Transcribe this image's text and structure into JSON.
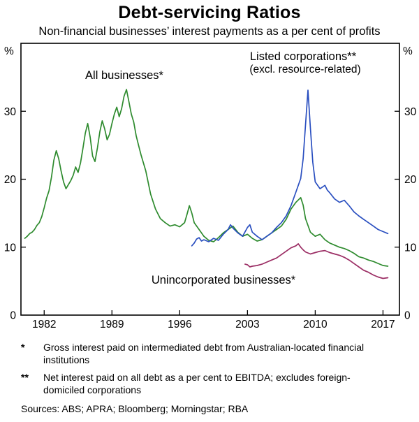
{
  "header": {
    "title": "Debt-servicing Ratios",
    "subtitle": "Non-financial businesses’ interest payments as a per cent of profits"
  },
  "chart_data": {
    "type": "line",
    "title": "Debt-servicing Ratios",
    "subtitle": "Non-financial businesses’ interest payments as a per cent of profits",
    "unit": "%",
    "xlabel": "",
    "ylabel": "%",
    "xlim": [
      1979.6,
      2018.7
    ],
    "ylim": [
      0,
      40
    ],
    "xticks": [
      1982,
      1989,
      1996,
      2003,
      2010,
      2017
    ],
    "yticks": [
      0,
      10,
      20,
      30
    ],
    "grid": false,
    "legend_position": "annotations-on-chart",
    "series": [
      {
        "name": "All businesses*",
        "color": "#2e8b2e",
        "points": [
          [
            1980.0,
            11.3
          ],
          [
            1980.25,
            11.6
          ],
          [
            1980.5,
            12.0
          ],
          [
            1980.75,
            12.2
          ],
          [
            1981.0,
            12.6
          ],
          [
            1981.25,
            13.2
          ],
          [
            1981.5,
            13.6
          ],
          [
            1981.75,
            14.5
          ],
          [
            1982.0,
            15.8
          ],
          [
            1982.25,
            17.2
          ],
          [
            1982.5,
            18.3
          ],
          [
            1982.75,
            20.3
          ],
          [
            1983.0,
            22.8
          ],
          [
            1983.25,
            24.2
          ],
          [
            1983.5,
            23.0
          ],
          [
            1983.75,
            21.2
          ],
          [
            1984.0,
            19.6
          ],
          [
            1984.25,
            18.6
          ],
          [
            1984.5,
            19.2
          ],
          [
            1984.75,
            19.8
          ],
          [
            1985.0,
            20.6
          ],
          [
            1985.25,
            21.8
          ],
          [
            1985.5,
            21.0
          ],
          [
            1985.75,
            22.4
          ],
          [
            1986.0,
            24.5
          ],
          [
            1986.25,
            26.8
          ],
          [
            1986.5,
            28.2
          ],
          [
            1986.75,
            26.2
          ],
          [
            1987.0,
            23.4
          ],
          [
            1987.25,
            22.6
          ],
          [
            1987.5,
            24.6
          ],
          [
            1987.75,
            27.0
          ],
          [
            1988.0,
            28.6
          ],
          [
            1988.25,
            27.4
          ],
          [
            1988.5,
            25.8
          ],
          [
            1988.75,
            26.6
          ],
          [
            1989.0,
            28.2
          ],
          [
            1989.25,
            29.6
          ],
          [
            1989.5,
            30.6
          ],
          [
            1989.75,
            29.2
          ],
          [
            1990.0,
            30.4
          ],
          [
            1990.25,
            32.2
          ],
          [
            1990.5,
            33.2
          ],
          [
            1990.75,
            31.4
          ],
          [
            1991.0,
            29.6
          ],
          [
            1991.25,
            28.4
          ],
          [
            1991.5,
            26.4
          ],
          [
            1991.75,
            25.0
          ],
          [
            1992.0,
            23.6
          ],
          [
            1992.5,
            21.2
          ],
          [
            1993.0,
            17.8
          ],
          [
            1993.5,
            15.6
          ],
          [
            1994.0,
            14.2
          ],
          [
            1994.5,
            13.6
          ],
          [
            1995.0,
            13.1
          ],
          [
            1995.5,
            13.3
          ],
          [
            1996.0,
            13.0
          ],
          [
            1996.5,
            13.6
          ],
          [
            1996.75,
            14.8
          ],
          [
            1997.0,
            16.1
          ],
          [
            1997.25,
            15.0
          ],
          [
            1997.5,
            13.6
          ],
          [
            1998.0,
            12.6
          ],
          [
            1998.5,
            11.6
          ],
          [
            1999.0,
            11.0
          ],
          [
            1999.5,
            10.8
          ],
          [
            2000.0,
            11.4
          ],
          [
            2000.5,
            12.1
          ],
          [
            2001.0,
            12.6
          ],
          [
            2001.5,
            13.1
          ],
          [
            2002.0,
            12.2
          ],
          [
            2002.5,
            11.6
          ],
          [
            2003.0,
            11.9
          ],
          [
            2003.5,
            11.3
          ],
          [
            2004.0,
            10.9
          ],
          [
            2004.5,
            11.1
          ],
          [
            2005.0,
            11.6
          ],
          [
            2005.5,
            12.1
          ],
          [
            2006.0,
            12.6
          ],
          [
            2006.5,
            13.1
          ],
          [
            2007.0,
            14.1
          ],
          [
            2007.5,
            15.6
          ],
          [
            2008.0,
            16.6
          ],
          [
            2008.5,
            17.3
          ],
          [
            2008.75,
            16.2
          ],
          [
            2009.0,
            14.2
          ],
          [
            2009.5,
            12.2
          ],
          [
            2010.0,
            11.6
          ],
          [
            2010.5,
            11.9
          ],
          [
            2011.0,
            11.1
          ],
          [
            2011.5,
            10.6
          ],
          [
            2012.0,
            10.3
          ],
          [
            2012.5,
            10.0
          ],
          [
            2013.0,
            9.8
          ],
          [
            2013.5,
            9.5
          ],
          [
            2014.0,
            9.1
          ],
          [
            2014.5,
            8.6
          ],
          [
            2015.0,
            8.4
          ],
          [
            2015.5,
            8.1
          ],
          [
            2016.0,
            7.9
          ],
          [
            2016.5,
            7.6
          ],
          [
            2017.0,
            7.3
          ],
          [
            2017.5,
            7.2
          ]
        ]
      },
      {
        "name": "Listed corporations**",
        "sublabel": "(excl. resource-related)",
        "color": "#2a4fc0",
        "points": [
          [
            1997.25,
            10.2
          ],
          [
            1997.5,
            10.6
          ],
          [
            1997.75,
            11.2
          ],
          [
            1998.0,
            11.4
          ],
          [
            1998.25,
            10.9
          ],
          [
            1998.5,
            11.1
          ],
          [
            1999.0,
            10.8
          ],
          [
            1999.5,
            11.3
          ],
          [
            2000.0,
            11.0
          ],
          [
            2000.5,
            11.9
          ],
          [
            2001.0,
            12.6
          ],
          [
            2001.25,
            13.3
          ],
          [
            2001.5,
            12.8
          ],
          [
            2002.0,
            12.1
          ],
          [
            2002.5,
            11.6
          ],
          [
            2003.0,
            12.9
          ],
          [
            2003.25,
            13.3
          ],
          [
            2003.5,
            12.2
          ],
          [
            2004.0,
            11.6
          ],
          [
            2004.5,
            11.1
          ],
          [
            2005.0,
            11.6
          ],
          [
            2005.5,
            12.1
          ],
          [
            2006.0,
            12.9
          ],
          [
            2006.5,
            13.6
          ],
          [
            2007.0,
            14.6
          ],
          [
            2007.5,
            16.1
          ],
          [
            2008.0,
            18.1
          ],
          [
            2008.5,
            20.1
          ],
          [
            2008.75,
            23.0
          ],
          [
            2009.0,
            28.0
          ],
          [
            2009.25,
            33.1
          ],
          [
            2009.5,
            27.5
          ],
          [
            2009.75,
            22.5
          ],
          [
            2010.0,
            19.6
          ],
          [
            2010.5,
            18.6
          ],
          [
            2011.0,
            19.1
          ],
          [
            2011.25,
            18.4
          ],
          [
            2011.5,
            18.0
          ],
          [
            2012.0,
            17.1
          ],
          [
            2012.5,
            16.6
          ],
          [
            2013.0,
            16.9
          ],
          [
            2013.5,
            16.1
          ],
          [
            2014.0,
            15.2
          ],
          [
            2014.5,
            14.6
          ],
          [
            2015.0,
            14.1
          ],
          [
            2015.5,
            13.6
          ],
          [
            2016.0,
            13.1
          ],
          [
            2016.5,
            12.6
          ],
          [
            2017.0,
            12.3
          ],
          [
            2017.5,
            12.0
          ]
        ]
      },
      {
        "name": "Unincorporated businesses*",
        "color": "#9b2d64",
        "points": [
          [
            2002.75,
            7.5
          ],
          [
            2003.0,
            7.4
          ],
          [
            2003.25,
            7.1
          ],
          [
            2003.5,
            7.2
          ],
          [
            2004.0,
            7.3
          ],
          [
            2004.5,
            7.5
          ],
          [
            2005.0,
            7.8
          ],
          [
            2005.5,
            8.1
          ],
          [
            2006.0,
            8.4
          ],
          [
            2006.5,
            8.9
          ],
          [
            2007.0,
            9.4
          ],
          [
            2007.5,
            9.9
          ],
          [
            2008.0,
            10.2
          ],
          [
            2008.25,
            10.5
          ],
          [
            2008.5,
            10.0
          ],
          [
            2008.75,
            9.6
          ],
          [
            2009.0,
            9.3
          ],
          [
            2009.5,
            9.0
          ],
          [
            2010.0,
            9.2
          ],
          [
            2010.5,
            9.4
          ],
          [
            2011.0,
            9.5
          ],
          [
            2011.5,
            9.2
          ],
          [
            2012.0,
            9.0
          ],
          [
            2012.5,
            8.8
          ],
          [
            2013.0,
            8.5
          ],
          [
            2013.5,
            8.1
          ],
          [
            2014.0,
            7.6
          ],
          [
            2014.5,
            7.1
          ],
          [
            2015.0,
            6.6
          ],
          [
            2015.5,
            6.3
          ],
          [
            2016.0,
            5.9
          ],
          [
            2016.5,
            5.6
          ],
          [
            2017.0,
            5.4
          ],
          [
            2017.5,
            5.5
          ]
        ]
      }
    ]
  },
  "footnotes": [
    {
      "marker": "*",
      "text": "Gross interest paid on intermediated debt from Australian-located financial institutions"
    },
    {
      "marker": "**",
      "text": "Net interest paid on all debt as a per cent to EBITDA; excludes foreign-domiciled corporations"
    }
  ],
  "sources": "Sources: ABS; APRA; Bloomberg; Morningstar; RBA"
}
